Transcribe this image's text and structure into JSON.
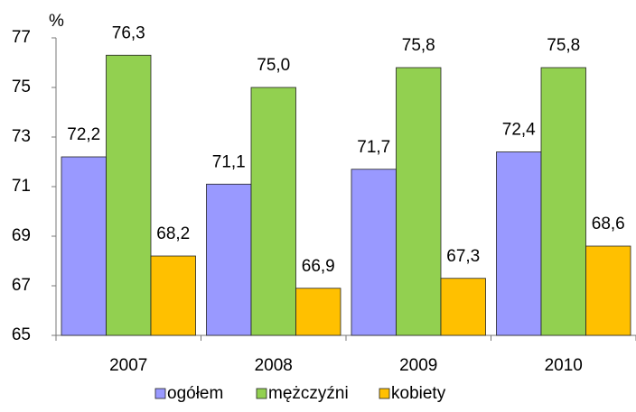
{
  "chart_data": {
    "type": "bar",
    "y_axis_label": "%",
    "categories": [
      "2007",
      "2008",
      "2009",
      "2010"
    ],
    "series": [
      {
        "name": "ogółem",
        "color": "#9999ff",
        "values": [
          72.2,
          71.1,
          71.7,
          72.4
        ],
        "value_labels": [
          "72,2",
          "71,1",
          "71,7",
          "72,4"
        ]
      },
      {
        "name": "mężczyźni",
        "color": "#92d050",
        "values": [
          76.3,
          75.0,
          75.8,
          75.8
        ],
        "value_labels": [
          "76,3",
          "75,0",
          "75,8",
          "75,8"
        ]
      },
      {
        "name": "kobiety",
        "color": "#ffc000",
        "values": [
          68.2,
          66.9,
          67.3,
          68.6
        ],
        "value_labels": [
          "68,2",
          "66,9",
          "67,3",
          "68,6"
        ]
      }
    ],
    "ylim": [
      65,
      77
    ],
    "yticks": [
      65,
      67,
      69,
      71,
      73,
      75,
      77
    ],
    "grid": false,
    "legend": "bottom"
  }
}
